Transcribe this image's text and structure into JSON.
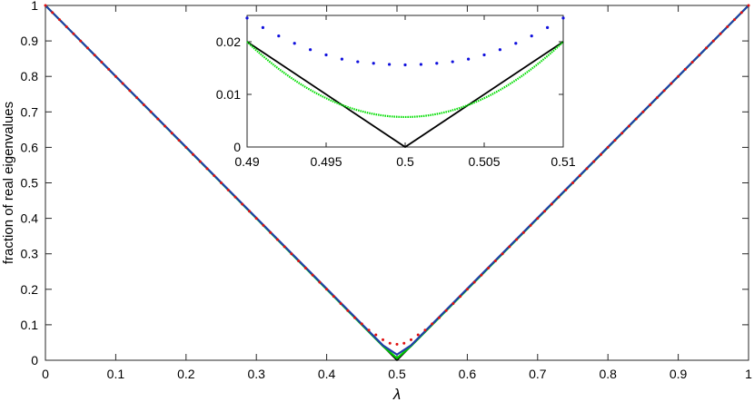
{
  "chart_data": [
    {
      "type": "line",
      "xlabel": "λ",
      "ylabel": "fraction of real eigenvalues",
      "xlim": [
        0,
        1
      ],
      "ylim": [
        0,
        1
      ],
      "xticks": [
        "0",
        "0.1",
        "0.2",
        "0.3",
        "0.4",
        "0.5",
        "0.6",
        "0.7",
        "0.8",
        "0.9",
        "1"
      ],
      "yticks": [
        "0",
        "0.1",
        "0.2",
        "0.3",
        "0.4",
        "0.5",
        "0.6",
        "0.7",
        "0.8",
        "0.9",
        "1"
      ],
      "grid": false,
      "series": [
        {
          "style": "solid",
          "color": "#000000",
          "points": [
            [
              0,
              1
            ],
            [
              0.5,
              0
            ],
            [
              1,
              1
            ]
          ]
        },
        {
          "style": "solid",
          "color": "#00cc00",
          "points": [
            [
              0,
              1
            ],
            [
              0.48,
              0.04
            ],
            [
              0.5,
              0.0055
            ],
            [
              0.52,
              0.04
            ],
            [
              1,
              1
            ]
          ]
        },
        {
          "style": "solid",
          "color": "#1f3ea8",
          "points": [
            [
              0,
              1
            ],
            [
              0.48,
              0.042
            ],
            [
              0.5,
              0.016
            ],
            [
              0.52,
              0.042
            ],
            [
              1,
              1
            ]
          ]
        },
        {
          "style": "dotted",
          "color": "#e01010",
          "points": [
            [
              0,
              1
            ],
            [
              0.3,
              0.4
            ],
            [
              0.44,
              0.12
            ],
            [
              0.46,
              0.085
            ],
            [
              0.48,
              0.058
            ],
            [
              0.49,
              0.048
            ],
            [
              0.5,
              0.045
            ],
            [
              0.51,
              0.048
            ],
            [
              0.52,
              0.058
            ],
            [
              0.54,
              0.085
            ],
            [
              0.56,
              0.12
            ],
            [
              0.7,
              0.4
            ],
            [
              1,
              1
            ]
          ]
        }
      ]
    },
    {
      "type": "line",
      "xlim": [
        0.49,
        0.51
      ],
      "ylim": [
        0,
        0.025
      ],
      "xticks": [
        "0.49",
        "0.495",
        "0.5",
        "0.505",
        "0.51"
      ],
      "yticks": [
        "0",
        "0.01",
        "0.02"
      ],
      "grid": false,
      "series": [
        {
          "style": "solid",
          "color": "#000000",
          "points": [
            [
              0.49,
              0.02
            ],
            [
              0.5,
              0
            ],
            [
              0.51,
              0.02
            ]
          ]
        },
        {
          "style": "dotted-dense",
          "color": "#00dd00",
          "vertex": 0.0057
        },
        {
          "style": "dots",
          "color": "#1010dd",
          "points": [
            [
              0.49,
              0.0245
            ],
            [
              0.491,
              0.0227
            ],
            [
              0.492,
              0.0211
            ],
            [
              0.493,
              0.0197
            ],
            [
              0.494,
              0.0185
            ],
            [
              0.495,
              0.0175
            ],
            [
              0.496,
              0.0167
            ],
            [
              0.497,
              0.0162
            ],
            [
              0.498,
              0.0159
            ],
            [
              0.499,
              0.0157
            ],
            [
              0.5,
              0.0156
            ],
            [
              0.501,
              0.0157
            ],
            [
              0.502,
              0.0159
            ],
            [
              0.503,
              0.0162
            ],
            [
              0.504,
              0.0167
            ],
            [
              0.505,
              0.0175
            ],
            [
              0.506,
              0.0185
            ],
            [
              0.507,
              0.0197
            ],
            [
              0.508,
              0.0211
            ],
            [
              0.509,
              0.0227
            ],
            [
              0.51,
              0.0245
            ]
          ]
        }
      ]
    }
  ]
}
